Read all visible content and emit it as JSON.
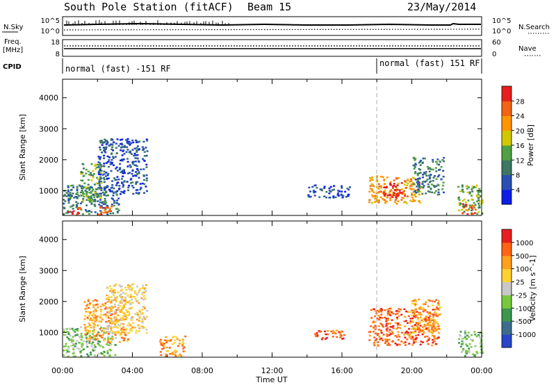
{
  "header": {
    "station": "South Pole Station (fitACF)",
    "beam": "Beam 15",
    "date": "23/May/2014"
  },
  "top_panel": {
    "left_label": "N.Sky",
    "right_label": "N.Search",
    "left_ticks": [
      "10^5",
      "10^0"
    ],
    "right_ticks": [
      "10^5",
      "10^0"
    ]
  },
  "freq_panel": {
    "left_label_line1": "Freq.",
    "left_label_line2": "[MHz]",
    "right_label": "Nave",
    "left_ticks": [
      "18",
      "8"
    ],
    "right_ticks": [
      "60",
      "0"
    ]
  },
  "cpid_panel": {
    "label": "CPID",
    "mode1": "normal (fast) -151 RF",
    "mode2": "normal (fast) 151 RF"
  },
  "x_axis": {
    "label": "Time UT",
    "ticks": [
      "00:00",
      "04:00",
      "08:00",
      "12:00",
      "16:00",
      "20:00",
      "00:00"
    ]
  },
  "chart_data": [
    {
      "type": "heatmap",
      "name": "power",
      "ylabel": "Slant Range [km]",
      "yticks": [
        "1000",
        "2000",
        "3000",
        "4000"
      ],
      "ylim": [
        200,
        4600
      ],
      "xlim_hours": [
        0,
        24
      ],
      "colorbar_label": "Power [dB]",
      "colorbar_ticks": [
        "4",
        "8",
        "12",
        "16",
        "20",
        "24",
        "28"
      ],
      "colorbar_colors": [
        "#0a1ee6",
        "#2850b4",
        "#3c7864",
        "#50a046",
        "#d2c800",
        "#ff9600",
        "#f06414",
        "#e61e1e"
      ],
      "regions": [
        {
          "t0": 0.0,
          "t1": 3.2,
          "r0": 250,
          "r1": 1200,
          "level": 2
        },
        {
          "t0": 0.2,
          "t1": 1.0,
          "r0": 250,
          "r1": 500,
          "level": 7
        },
        {
          "t0": 1.0,
          "t1": 2.2,
          "r0": 600,
          "r1": 1900,
          "level": 3
        },
        {
          "t0": 2.0,
          "t1": 4.8,
          "r0": 900,
          "r1": 2700,
          "level": 1
        },
        {
          "t0": 2.0,
          "t1": 2.8,
          "r0": 250,
          "r1": 600,
          "level": 6
        },
        {
          "t0": 14.0,
          "t1": 16.4,
          "r0": 800,
          "r1": 1200,
          "level": 1
        },
        {
          "t0": 17.5,
          "t1": 20.5,
          "r0": 600,
          "r1": 1500,
          "level": 5
        },
        {
          "t0": 18.3,
          "t1": 19.6,
          "r0": 800,
          "r1": 1300,
          "level": 7
        },
        {
          "t0": 20.0,
          "t1": 21.8,
          "r0": 900,
          "r1": 2100,
          "level": 2
        },
        {
          "t0": 22.6,
          "t1": 24.0,
          "r0": 250,
          "r1": 1200,
          "level": 3
        },
        {
          "t0": 22.8,
          "t1": 23.6,
          "r0": 250,
          "r1": 600,
          "level": 6
        }
      ]
    },
    {
      "type": "heatmap",
      "name": "velocity",
      "ylabel": "Slant Range [km]",
      "yticks": [
        "1000",
        "2000",
        "3000",
        "4000"
      ],
      "ylim": [
        200,
        4600
      ],
      "xlim_hours": [
        0,
        24
      ],
      "colorbar_label": "Velocity [m s^-1]",
      "colorbar_ticks": [
        "1000",
        "500",
        "100",
        "25",
        "-25",
        "-100",
        "-500",
        "-1000"
      ],
      "colorbar_colors": [
        "#2846c8",
        "#3c6e8c",
        "#3c9650",
        "#78c83c",
        "#c8c8c8",
        "#ffd232",
        "#ffa01e",
        "#ff6414",
        "#e61e1e"
      ],
      "regions": [
        {
          "t0": 0.0,
          "t1": 3.0,
          "r0": 250,
          "r1": 1200,
          "level": 3
        },
        {
          "t0": 1.2,
          "t1": 3.8,
          "r0": 700,
          "r1": 2100,
          "level": 6
        },
        {
          "t0": 2.4,
          "t1": 4.8,
          "r0": 1000,
          "r1": 2600,
          "level": 5
        },
        {
          "t0": 5.5,
          "t1": 7.0,
          "r0": 250,
          "r1": 900,
          "level": 6
        },
        {
          "t0": 14.2,
          "t1": 16.2,
          "r0": 800,
          "r1": 1100,
          "level": 7
        },
        {
          "t0": 17.5,
          "t1": 21.5,
          "r0": 600,
          "r1": 1800,
          "level": 7
        },
        {
          "t0": 19.8,
          "t1": 21.6,
          "r0": 1000,
          "r1": 2100,
          "level": 6
        },
        {
          "t0": 22.6,
          "t1": 24.0,
          "r0": 250,
          "r1": 1100,
          "level": 3
        }
      ]
    }
  ]
}
